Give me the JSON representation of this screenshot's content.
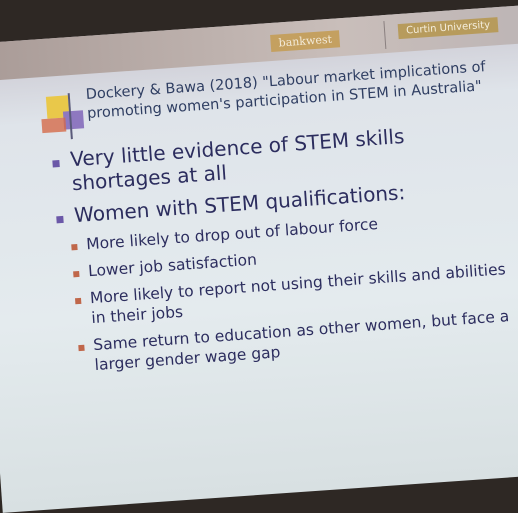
{
  "header": {
    "logos": [
      "bankwest",
      "Curtin University"
    ],
    "title_lines": [
      "Dockery & Bawa (2018) \"Labour market implications of",
      "promoting women's participation in STEM in Australia\""
    ]
  },
  "bullets": [
    {
      "text": "Very little evidence of STEM skills shortages at all",
      "sub": []
    },
    {
      "text": "Women with STEM qualifications:",
      "sub": [
        "More likely to drop out of labour force",
        "Lower job satisfaction",
        "More likely to report not using their skills and abilities in their jobs",
        "Same return to education as other women, but face a larger gender wage gap"
      ]
    }
  ]
}
